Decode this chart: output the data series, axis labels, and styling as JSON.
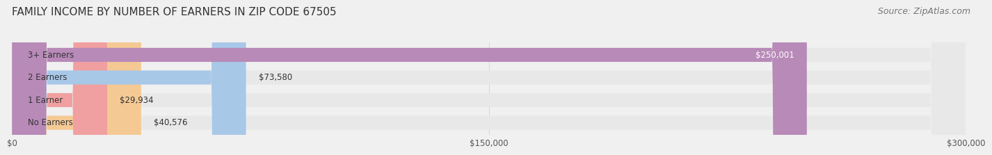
{
  "title": "FAMILY INCOME BY NUMBER OF EARNERS IN ZIP CODE 67505",
  "source": "Source: ZipAtlas.com",
  "categories": [
    "No Earners",
    "1 Earner",
    "2 Earners",
    "3+ Earners"
  ],
  "values": [
    40576,
    29934,
    73580,
    250001
  ],
  "bar_colors": [
    "#f5c994",
    "#f0a0a0",
    "#a8c8e8",
    "#b88ab8"
  ],
  "label_colors": [
    "#333333",
    "#333333",
    "#333333",
    "#ffffff"
  ],
  "value_labels": [
    "$40,576",
    "$29,934",
    "$73,580",
    "$250,001"
  ],
  "xlim": [
    0,
    300000
  ],
  "xticks": [
    0,
    150000,
    300000
  ],
  "xtick_labels": [
    "$0",
    "$150,000",
    "$300,000"
  ],
  "background_color": "#f0f0f0",
  "bar_background_color": "#e8e8e8",
  "title_fontsize": 11,
  "source_fontsize": 9
}
